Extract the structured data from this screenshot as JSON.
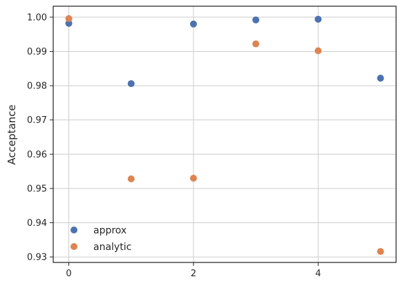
{
  "chart_data": {
    "type": "scatter",
    "xlabel": "",
    "ylabel": "Acceptance",
    "xlim": [
      -0.25,
      5.25
    ],
    "ylim": [
      0.9284,
      1.0032
    ],
    "x_ticks": [
      0,
      2,
      4
    ],
    "x_tick_labels": [
      "0",
      "2",
      "4"
    ],
    "y_ticks": [
      0.93,
      0.94,
      0.95,
      0.96,
      0.97,
      0.98,
      0.99,
      1.0
    ],
    "y_tick_labels": [
      "0.93",
      "0.94",
      "0.95",
      "0.96",
      "0.97",
      "0.98",
      "0.99",
      "1.00"
    ],
    "grid": true,
    "legend_position": "lower-left",
    "series": [
      {
        "name": "approx",
        "color": "#4c72b0",
        "x": [
          0,
          1,
          2,
          3,
          4,
          5
        ],
        "y": [
          0.9982,
          0.9806,
          0.998,
          0.9992,
          0.9994,
          0.9822
        ]
      },
      {
        "name": "analytic",
        "color": "#dd8452",
        "x": [
          0,
          1,
          2,
          3,
          4,
          5
        ],
        "y": [
          0.9996,
          0.9528,
          0.953,
          0.9922,
          0.9902,
          0.9316
        ]
      }
    ]
  }
}
